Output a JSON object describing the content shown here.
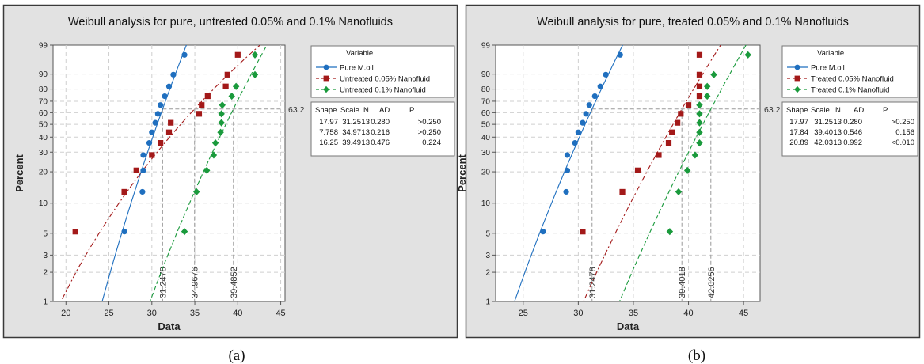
{
  "figure": {
    "captions": [
      "(a)",
      "(b)"
    ]
  },
  "chart_data": [
    {
      "type": "scatter",
      "subtype": "weibull-probability-plot",
      "title": "Weibull analysis for pure, untreated 0.05% and 0.1% Nanofluids",
      "xlabel": "Data",
      "ylabel": "Percent",
      "xlim": [
        18.5,
        45.5
      ],
      "xticks": [
        20,
        25,
        30,
        35,
        40,
        45
      ],
      "ylim": [
        1,
        99
      ],
      "yticks": [
        1,
        2,
        3,
        5,
        10,
        20,
        30,
        40,
        50,
        60,
        70,
        80,
        90,
        99
      ],
      "y_scale": "weibull",
      "grid": true,
      "reference_line_label": "63.2",
      "scale_labels": [
        "31.2478",
        "34.9676",
        "39.4852"
      ],
      "legend": {
        "title": "Variable",
        "placement": "right"
      },
      "stats_table": {
        "headers": [
          "Shape",
          "Scale",
          "N",
          "AD",
          "P"
        ],
        "rows": [
          [
            "17.97",
            "31.25",
            "13",
            "0.280",
            ">0.250"
          ],
          [
            "7.758",
            "34.97",
            "13",
            "0.216",
            ">0.250"
          ],
          [
            "16.25",
            "39.49",
            "13",
            "0.476",
            "0.224"
          ]
        ]
      },
      "series": [
        {
          "name": "Pure M.oil",
          "color": "#1f6fbf",
          "marker": "circle",
          "line": "solid",
          "shape": 17.97,
          "scale": 31.25,
          "x": [
            26.8,
            28.9,
            29.0,
            29.0,
            29.7,
            30.0,
            30.4,
            30.7,
            31.0,
            31.5,
            32.0,
            32.5,
            33.8
          ],
          "y": [
            5.2,
            12.9,
            20.6,
            28.3,
            35.9,
            43.6,
            51.3,
            59.0,
            66.7,
            74.3,
            82.0,
            89.7,
            97.4
          ]
        },
        {
          "name": "Untreated 0.05% Nanofluid",
          "color": "#a31919",
          "marker": "square",
          "line": "dashed",
          "shape": 7.758,
          "scale": 34.97,
          "x": [
            21.1,
            26.8,
            28.2,
            30.0,
            31.0,
            32.0,
            32.2,
            35.5,
            35.8,
            36.5,
            38.6,
            38.8,
            40.0
          ],
          "y": [
            5.2,
            12.9,
            20.6,
            28.3,
            35.9,
            43.6,
            51.3,
            59.0,
            66.7,
            74.3,
            82.0,
            89.7,
            97.4
          ]
        },
        {
          "name": "Untreated 0.1% Nanofluid",
          "color": "#1a9a3c",
          "marker": "diamond",
          "line": "dashed",
          "shape": 16.25,
          "scale": 39.49,
          "x": [
            33.8,
            35.2,
            36.4,
            37.2,
            37.4,
            38.0,
            38.1,
            38.1,
            38.2,
            39.3,
            39.8,
            42.0,
            42.0
          ],
          "y": [
            5.2,
            12.9,
            20.6,
            28.3,
            35.9,
            43.6,
            51.3,
            59.0,
            66.7,
            74.3,
            82.0,
            89.7,
            97.4
          ]
        }
      ]
    },
    {
      "type": "scatter",
      "subtype": "weibull-probability-plot",
      "title": "Weibull analysis for pure, treated 0.05% and 0.1% Nanofluids",
      "xlabel": "Data",
      "ylabel": "Percent",
      "xlim": [
        22.5,
        46.5
      ],
      "xticks": [
        25,
        30,
        35,
        40,
        45
      ],
      "ylim": [
        1,
        99
      ],
      "yticks": [
        1,
        2,
        3,
        5,
        10,
        20,
        30,
        40,
        50,
        60,
        70,
        80,
        90,
        99
      ],
      "y_scale": "weibull",
      "grid": true,
      "reference_line_label": "63.2",
      "scale_labels": [
        "31.2478",
        "39.4018",
        "42.0256"
      ],
      "legend": {
        "title": "Variable",
        "placement": "right"
      },
      "stats_table": {
        "headers": [
          "Shape",
          "Scale",
          "N",
          "AD",
          "P"
        ],
        "rows": [
          [
            "17.97",
            "31.25",
            "13",
            "0.280",
            ">0.250"
          ],
          [
            "17.84",
            "39.40",
            "13",
            "0.546",
            "0.156"
          ],
          [
            "20.89",
            "42.03",
            "13",
            "0.992",
            "<0.010"
          ]
        ]
      },
      "series": [
        {
          "name": "Pure M.oil",
          "color": "#1f6fbf",
          "marker": "circle",
          "line": "solid",
          "shape": 17.97,
          "scale": 31.25,
          "x": [
            26.8,
            28.9,
            29.0,
            29.0,
            29.7,
            30.0,
            30.4,
            30.7,
            31.0,
            31.5,
            32.0,
            32.5,
            33.8
          ],
          "y": [
            5.2,
            12.9,
            20.6,
            28.3,
            35.9,
            43.6,
            51.3,
            59.0,
            66.7,
            74.3,
            82.0,
            89.7,
            97.4
          ]
        },
        {
          "name": "Treated 0.05% Nanofluid",
          "color": "#a31919",
          "marker": "square",
          "line": "dashed",
          "shape": 17.84,
          "scale": 39.4,
          "x": [
            30.4,
            34.0,
            35.4,
            37.3,
            38.2,
            38.5,
            39.0,
            39.3,
            40.0,
            41.0,
            41.0,
            41.0,
            41.0
          ],
          "y": [
            5.2,
            12.9,
            20.6,
            28.3,
            35.9,
            43.6,
            51.3,
            59.0,
            66.7,
            74.3,
            82.0,
            89.7,
            97.4
          ]
        },
        {
          "name": "Treated 0.1% Nanofluid",
          "color": "#1a9a3c",
          "marker": "diamond",
          "line": "dashed",
          "shape": 20.89,
          "scale": 42.03,
          "x": [
            38.3,
            39.1,
            39.9,
            40.6,
            41.0,
            41.0,
            41.0,
            41.0,
            41.0,
            41.7,
            41.7,
            42.3,
            45.4
          ],
          "y": [
            5.2,
            12.9,
            20.6,
            28.3,
            35.9,
            43.6,
            51.3,
            59.0,
            66.7,
            74.3,
            82.0,
            89.7,
            97.4
          ]
        }
      ]
    }
  ]
}
